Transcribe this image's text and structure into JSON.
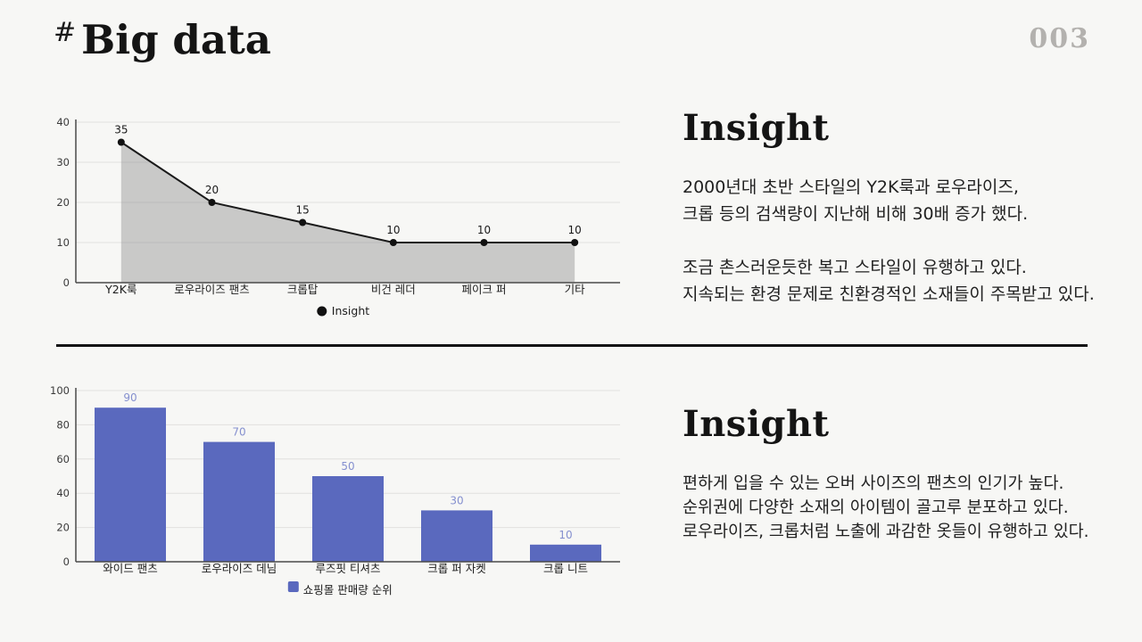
{
  "header": {
    "hash": "#",
    "title": "Big data",
    "page_number": "003"
  },
  "top_section": {
    "insight": {
      "heading": "Insight",
      "paragraphs": [
        [
          "2000년대 초반 스타일의 Y2K룩과 로우라이즈,",
          "크롭 등의 검색량이 지난해 비해 30배 증가 했다."
        ],
        [
          "조금 촌스러운듯한 복고 스타일이 유행하고 있다.",
          "지속되는 환경 문제로 친환경적인 소재들이 주목받고 있다."
        ]
      ]
    }
  },
  "bottom_section": {
    "insight": {
      "heading": "Insight",
      "paragraphs": [
        [
          "편하게 입을 수 있는 오버 사이즈의 팬츠의 인기가 높다.",
          "순위권에 다양한 소재의 아이템이 골고루 분포하고 있다.",
          "로우라이즈, 크롭처럼 노출에 과감한 옷들이 유행하고 있다."
        ]
      ]
    }
  },
  "chart_data": [
    {
      "type": "area",
      "title": "",
      "xlabel": "",
      "ylabel": "",
      "categories": [
        "Y2K룩",
        "로우라이즈 팬츠",
        "크롭탑",
        "비건 레더",
        "페이크 퍼",
        "기타"
      ],
      "values": [
        35,
        20,
        15,
        10,
        10,
        10
      ],
      "ylim": [
        0,
        40
      ],
      "ytick_step": 10,
      "grid": true,
      "legend": "Insight",
      "legend_position": "bottom",
      "line_color": "#1a1a1a",
      "fill_color": "rgba(138,138,138,0.42)",
      "marker_color": "#111111",
      "label_color": "#1a1a1a"
    },
    {
      "type": "bar",
      "title": "",
      "xlabel": "",
      "ylabel": "",
      "categories": [
        "와이드 팬츠",
        "로우라이즈 데님",
        "루즈핏 티셔츠",
        "크롭 퍼 자켓",
        "크롭 니트"
      ],
      "values": [
        90,
        70,
        50,
        30,
        10
      ],
      "ylim": [
        0,
        100
      ],
      "ytick_step": 20,
      "grid": true,
      "legend": "쇼핑몰 판매량 순위",
      "legend_position": "bottom",
      "bar_color": "#5a69be",
      "label_color": "#8590cf"
    }
  ]
}
